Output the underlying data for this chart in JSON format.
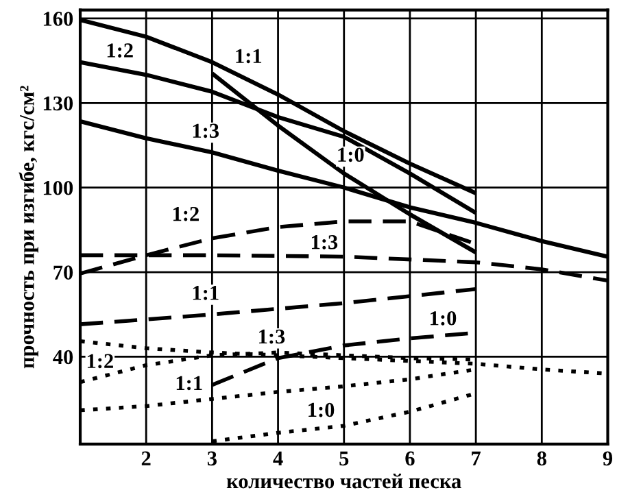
{
  "chart_data": {
    "type": "line",
    "xlabel": "количество частей песка",
    "ylabel": "прочность при изгибе, кгс/см²",
    "xlim": [
      1,
      9
    ],
    "xticks": [
      2,
      3,
      4,
      5,
      6,
      7,
      8,
      9
    ],
    "ylim": [
      9,
      163
    ],
    "yticks": [
      40,
      70,
      100,
      130,
      160
    ],
    "grid": true,
    "legend": false,
    "marker": "none",
    "series": [
      {
        "name": "1:1",
        "color": "#000000",
        "line_style": "solid",
        "x": [
          1,
          2,
          3,
          4,
          5,
          6,
          7
        ],
        "values": [
          159.5,
          153.5,
          144.5,
          133,
          120,
          108.5,
          98
        ]
      },
      {
        "name": "1:2",
        "color": "#000000",
        "line_style": "solid",
        "x": [
          1,
          2,
          3,
          4,
          5,
          6,
          7
        ],
        "values": [
          144.5,
          140,
          134,
          125,
          118,
          105,
          91
        ]
      },
      {
        "name": "1:3",
        "color": "#000000",
        "line_style": "solid",
        "x": [
          1,
          2,
          3,
          4,
          5,
          6,
          7,
          8,
          9
        ],
        "values": [
          123.5,
          117.5,
          112.5,
          106,
          100,
          93,
          87.5,
          81,
          75.5
        ]
      },
      {
        "name": "1:0",
        "color": "#000000",
        "line_style": "solid",
        "x": [
          3,
          4,
          5,
          6,
          7
        ],
        "values": [
          140.5,
          122,
          105,
          90.5,
          77
        ]
      },
      {
        "name": "1:2",
        "color": "#000000",
        "line_style": "dashed",
        "x": [
          1,
          2,
          3,
          4,
          5,
          6,
          7
        ],
        "values": [
          69.5,
          76,
          82,
          86,
          88,
          88,
          80
        ]
      },
      {
        "name": "1:3",
        "color": "#000000",
        "line_style": "dashed",
        "x": [
          1,
          3,
          5,
          7,
          8,
          9
        ],
        "values": [
          76,
          76,
          75.5,
          73.5,
          71,
          67
        ]
      },
      {
        "name": "1:1",
        "color": "#000000",
        "line_style": "dashed",
        "x": [
          1,
          3,
          4,
          5,
          7
        ],
        "values": [
          51.5,
          55,
          57,
          59,
          64
        ]
      },
      {
        "name": "1:0",
        "color": "#000000",
        "line_style": "dashed",
        "x": [
          3,
          4,
          5,
          6,
          7
        ],
        "values": [
          30,
          39.5,
          44,
          46.5,
          48.5
        ]
      },
      {
        "name": "1:3",
        "color": "#000000",
        "line_style": "dotted",
        "x": [
          1,
          2,
          3,
          4,
          5,
          6,
          7,
          8,
          9
        ],
        "values": [
          45.5,
          43,
          41.5,
          40.5,
          39.5,
          38.5,
          37.5,
          35.5,
          34
        ]
      },
      {
        "name": "1:2",
        "color": "#000000",
        "line_style": "dotted",
        "x": [
          1,
          2,
          3,
          4,
          5,
          6,
          7
        ],
        "values": [
          31,
          37,
          40.5,
          41.5,
          40.5,
          39.5,
          39
        ]
      },
      {
        "name": "1:1",
        "color": "#000000",
        "line_style": "dotted",
        "x": [
          1,
          2,
          3,
          4,
          5,
          6,
          7
        ],
        "values": [
          21,
          22.5,
          25,
          27.5,
          29.5,
          32,
          35.5
        ]
      },
      {
        "name": "1:0",
        "color": "#000000",
        "line_style": "dotted",
        "x": [
          3,
          4,
          5,
          6,
          7
        ],
        "values": [
          10,
          13,
          15.5,
          20.5,
          27
        ]
      }
    ]
  }
}
